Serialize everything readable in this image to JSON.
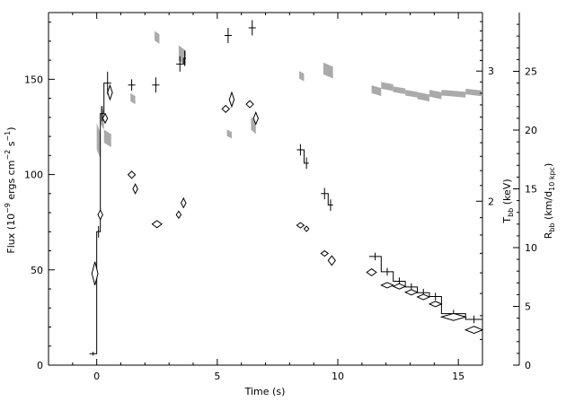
{
  "chart_data": {
    "type": "line",
    "xlabel": "Time (s)",
    "ylabel": "Flux (10^-9 ergs cm^-2 s^-1)",
    "xlim": [
      -2,
      16
    ],
    "ylim": [
      0,
      185
    ],
    "x_ticks": [
      0,
      5,
      10,
      15
    ],
    "y_ticks": [
      0,
      50,
      100,
      150
    ],
    "right_axes": [
      {
        "label": "T_bb (keV)",
        "scale": "log",
        "lim": [
          1.2,
          3.6
        ],
        "major_ticks": [
          2,
          3
        ]
      },
      {
        "label": "R_bb (km/d_10 kpc)",
        "lim": [
          0,
          30
        ],
        "major_ticks": [
          0,
          5,
          10,
          15,
          20,
          25
        ]
      }
    ],
    "series": [
      {
        "name": "Flux",
        "style": "step-with-errors",
        "points": [
          {
            "x0": -0.3,
            "x1": 0.0,
            "y": 6,
            "err": 1
          },
          {
            "x0": 0.0,
            "x1": 0.15,
            "y": 70,
            "err": 3
          },
          {
            "x0": 0.15,
            "x1": 0.3,
            "y": 132,
            "err": 4
          },
          {
            "x0": 0.3,
            "x1": 0.6,
            "y": 148,
            "err": 6
          },
          {
            "x0": 1.3,
            "x1": 1.6,
            "y": 147,
            "err": 3
          },
          {
            "x0": 2.3,
            "x1": 2.6,
            "y": 147,
            "err": 4
          },
          {
            "x0": 3.3,
            "x1": 3.6,
            "y": 158,
            "err": 4
          },
          {
            "x0": 3.6,
            "x1": 3.7,
            "y": 161,
            "err": 4
          },
          {
            "x0": 5.3,
            "x1": 5.6,
            "y": 173,
            "err": 4
          },
          {
            "x0": 6.3,
            "x1": 6.6,
            "y": 177,
            "err": 4
          },
          {
            "x0": 8.3,
            "x1": 8.6,
            "y": 113,
            "err": 3
          },
          {
            "x0": 8.6,
            "x1": 8.8,
            "y": 106,
            "err": 3
          },
          {
            "x0": 9.3,
            "x1": 9.6,
            "y": 90,
            "err": 3
          },
          {
            "x0": 9.6,
            "x1": 9.8,
            "y": 84,
            "err": 3
          },
          {
            "x0": 11.3,
            "x1": 11.8,
            "y": 57,
            "err": 2
          },
          {
            "x0": 11.8,
            "x1": 12.3,
            "y": 49,
            "err": 2
          },
          {
            "x0": 12.3,
            "x1": 12.8,
            "y": 44,
            "err": 2
          },
          {
            "x0": 12.8,
            "x1": 13.3,
            "y": 41,
            "err": 2
          },
          {
            "x0": 13.3,
            "x1": 13.8,
            "y": 38,
            "err": 2
          },
          {
            "x0": 13.8,
            "x1": 14.3,
            "y": 36,
            "err": 2
          },
          {
            "x0": 14.3,
            "x1": 15.3,
            "y": 27,
            "err": 2
          },
          {
            "x0": 15.3,
            "x1": 16.0,
            "y": 24,
            "err": 2
          }
        ]
      },
      {
        "name": "R_bb",
        "style": "diamonds",
        "points": [
          {
            "x0": -0.2,
            "x1": 0.05,
            "y": 7.8,
            "err": 1.0
          },
          {
            "x0": 0.05,
            "x1": 0.25,
            "y": 12.8,
            "err": 0.4
          },
          {
            "x0": 0.25,
            "x1": 0.45,
            "y": 21.0,
            "err": 0.4
          },
          {
            "x0": 0.45,
            "x1": 0.65,
            "y": 23.2,
            "err": 0.6
          },
          {
            "x0": 1.3,
            "x1": 1.6,
            "y": 16.2,
            "err": 0.3
          },
          {
            "x0": 1.5,
            "x1": 1.7,
            "y": 15.0,
            "err": 0.4
          },
          {
            "x0": 2.3,
            "x1": 2.7,
            "y": 12.0,
            "err": 0.3
          },
          {
            "x0": 3.3,
            "x1": 3.5,
            "y": 12.8,
            "err": 0.3
          },
          {
            "x0": 3.5,
            "x1": 3.7,
            "y": 13.8,
            "err": 0.4
          },
          {
            "x0": 5.2,
            "x1": 5.5,
            "y": 21.8,
            "err": 0.3
          },
          {
            "x0": 5.5,
            "x1": 5.7,
            "y": 22.6,
            "err": 0.6
          },
          {
            "x0": 6.2,
            "x1": 6.5,
            "y": 22.2,
            "err": 0.3
          },
          {
            "x0": 6.5,
            "x1": 6.7,
            "y": 21.0,
            "err": 0.5
          },
          {
            "x0": 8.3,
            "x1": 8.6,
            "y": 11.9,
            "err": 0.2
          },
          {
            "x0": 8.6,
            "x1": 8.8,
            "y": 11.6,
            "err": 0.2
          },
          {
            "x0": 9.3,
            "x1": 9.6,
            "y": 9.5,
            "err": 0.2
          },
          {
            "x0": 9.6,
            "x1": 9.9,
            "y": 8.9,
            "err": 0.4
          },
          {
            "x0": 11.2,
            "x1": 11.6,
            "y": 7.9,
            "err": 0.3
          },
          {
            "x0": 11.8,
            "x1": 12.3,
            "y": 6.8,
            "err": 0.2
          },
          {
            "x0": 12.3,
            "x1": 12.8,
            "y": 6.7,
            "err": 0.2
          },
          {
            "x0": 12.8,
            "x1": 13.3,
            "y": 6.2,
            "err": 0.2
          },
          {
            "x0": 13.3,
            "x1": 13.8,
            "y": 5.8,
            "err": 0.2
          },
          {
            "x0": 13.8,
            "x1": 14.3,
            "y": 5.2,
            "err": 0.2
          },
          {
            "x0": 14.3,
            "x1": 15.3,
            "y": 4.1,
            "err": 0.3
          },
          {
            "x0": 15.3,
            "x1": 16.0,
            "y": 3.0,
            "err": 0.3
          }
        ]
      },
      {
        "name": "T_bb",
        "style": "grey-bands",
        "color": "#aaaaaa",
        "segments": [
          {
            "x0": 0.0,
            "x1": 0.15,
            "lo": 2.35,
            "hi": 2.55
          },
          {
            "x0": 0.15,
            "x1": 0.3,
            "lo": 2.55,
            "hi": 2.7
          },
          {
            "x0": 0.3,
            "x1": 0.6,
            "lo": 2.4,
            "hi": 2.5
          },
          {
            "x0": 1.4,
            "x1": 1.6,
            "lo": 2.73,
            "hi": 2.8
          },
          {
            "x0": 2.4,
            "x1": 2.6,
            "lo": 3.3,
            "hi": 3.4
          },
          {
            "x0": 3.4,
            "x1": 3.7,
            "lo": 3.1,
            "hi": 3.25
          },
          {
            "x0": 5.4,
            "x1": 5.6,
            "lo": 2.45,
            "hi": 2.5
          },
          {
            "x0": 6.4,
            "x1": 6.6,
            "lo": 2.5,
            "hi": 2.6
          },
          {
            "x0": 8.4,
            "x1": 8.6,
            "lo": 2.93,
            "hi": 3.0
          },
          {
            "x0": 9.4,
            "x1": 9.8,
            "lo": 2.97,
            "hi": 3.08
          },
          {
            "x0": 11.4,
            "x1": 11.8,
            "lo": 2.8,
            "hi": 2.87
          },
          {
            "x0": 11.8,
            "x1": 12.3,
            "lo": 2.84,
            "hi": 2.9
          },
          {
            "x0": 12.3,
            "x1": 12.8,
            "lo": 2.81,
            "hi": 2.86
          },
          {
            "x0": 12.8,
            "x1": 13.3,
            "lo": 2.78,
            "hi": 2.83
          },
          {
            "x0": 13.3,
            "x1": 13.8,
            "lo": 2.75,
            "hi": 2.81
          },
          {
            "x0": 13.8,
            "x1": 14.3,
            "lo": 2.77,
            "hi": 2.83
          },
          {
            "x0": 14.3,
            "x1": 15.3,
            "lo": 2.78,
            "hi": 2.83
          },
          {
            "x0": 15.3,
            "x1": 16.0,
            "lo": 2.79,
            "hi": 2.84
          }
        ]
      }
    ]
  }
}
